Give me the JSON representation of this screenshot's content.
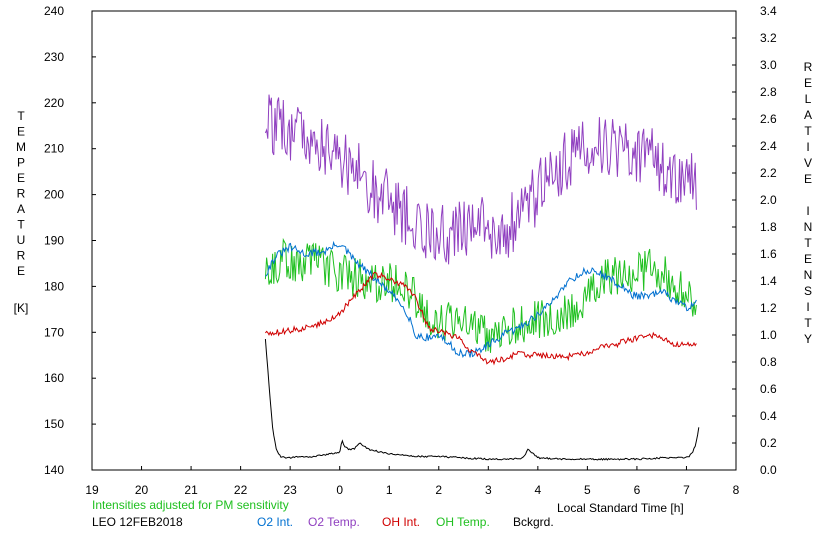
{
  "chart_data": {
    "type": "line",
    "left_axis": {
      "label_letters": [
        "T",
        "E",
        "M",
        "P",
        "E",
        "R",
        "A",
        "T",
        "U",
        "R",
        "E"
      ],
      "unit": "[K]",
      "ylim": [
        140,
        240
      ],
      "ticks": [
        "240",
        "230",
        "220",
        "210",
        "200",
        "190",
        "180",
        "170",
        "160",
        "150",
        "140"
      ]
    },
    "right_axis": {
      "label_word1": [
        "R",
        "E",
        "L",
        "A",
        "T",
        "I",
        "V",
        "E"
      ],
      "label_word2": [
        "I",
        "N",
        "T",
        "E",
        "N",
        "S",
        "I",
        "T",
        "Y"
      ],
      "ylim": [
        0,
        3.4
      ],
      "ticks": [
        "3.4",
        "3.2",
        "3.0",
        "2.8",
        "2.6",
        "2.4",
        "2.2",
        "2.0",
        "1.8",
        "1.6",
        "1.4",
        "1.2",
        "1.0",
        "0.8",
        "0.6",
        "0.4",
        "0.2",
        "0.0"
      ]
    },
    "x_axis": {
      "label": "Local Standard Time [h]",
      "ticks": [
        "19",
        "20",
        "21",
        "22",
        "23",
        "0",
        "1",
        "2",
        "3",
        "4",
        "5",
        "6",
        "7",
        "8"
      ],
      "xlim": [
        19,
        32
      ]
    },
    "note": "Intensities adjusted for PM sensitivity",
    "station": "LEO 12FEB2018",
    "series": [
      {
        "name": "O2 Int.",
        "color": "#0070d0",
        "axis": "right",
        "x": [
          22.5,
          22.7,
          23.0,
          23.3,
          23.7,
          24.0,
          24.3,
          24.7,
          25.0,
          25.3,
          25.45,
          25.5,
          25.8,
          26.0,
          26.3,
          26.5,
          26.8,
          27.0,
          27.3,
          27.6,
          28.0,
          28.3,
          28.6,
          29.0,
          29.3,
          29.6,
          29.9,
          30.2,
          30.5,
          30.8,
          31.0,
          31.2
        ],
        "y": [
          1.45,
          1.58,
          1.65,
          1.6,
          1.62,
          1.68,
          1.55,
          1.42,
          1.32,
          1.2,
          1.1,
          1.0,
          0.98,
          1.0,
          0.9,
          0.85,
          0.88,
          0.92,
          1.0,
          1.05,
          1.15,
          1.25,
          1.4,
          1.48,
          1.45,
          1.38,
          1.3,
          1.28,
          1.32,
          1.25,
          1.2,
          1.25
        ],
        "jitter": 0.03
      },
      {
        "name": "O2 Temp.",
        "color": "#9040c0",
        "axis": "left",
        "x": [
          22.5,
          22.8,
          23.2,
          23.6,
          24.0,
          24.3,
          24.6,
          25.0,
          25.3,
          25.6,
          26.0,
          26.3,
          26.6,
          26.9,
          27.1,
          27.4,
          27.8,
          28.2,
          28.6,
          29.0,
          29.4,
          29.8,
          30.2,
          30.5,
          30.8,
          31.0,
          31.2
        ],
        "y": [
          216,
          214,
          214,
          211,
          208,
          206,
          202,
          199,
          196,
          193,
          191,
          191,
          193,
          194,
          190,
          193,
          197,
          204,
          208,
          210,
          211,
          210,
          209,
          206,
          203,
          202,
          203
        ],
        "jitter": 7
      },
      {
        "name": "OH Int.",
        "color": "#d00000",
        "axis": "right",
        "x": [
          22.5,
          22.8,
          23.1,
          23.4,
          23.7,
          24.0,
          24.2,
          24.4,
          24.7,
          25.0,
          25.3,
          25.5,
          25.8,
          26.1,
          26.4,
          26.6,
          26.8,
          27.0,
          27.3,
          27.6,
          28.0,
          28.3,
          28.6,
          28.9,
          29.2,
          29.5,
          29.8,
          30.1,
          30.4,
          30.7,
          31.0,
          31.2
        ],
        "y": [
          1.02,
          1.02,
          1.04,
          1.06,
          1.1,
          1.16,
          1.25,
          1.33,
          1.45,
          1.42,
          1.36,
          1.3,
          1.05,
          1.02,
          0.98,
          0.9,
          0.85,
          0.8,
          0.82,
          0.86,
          0.85,
          0.84,
          0.84,
          0.86,
          0.9,
          0.92,
          0.96,
          0.98,
          1.0,
          0.94,
          0.92,
          0.94
        ],
        "jitter": 0.022
      },
      {
        "name": "OH Temp.",
        "color": "#20c020",
        "axis": "left",
        "x": [
          22.5,
          22.8,
          23.1,
          23.5,
          23.8,
          24.0,
          24.3,
          24.6,
          25.0,
          25.3,
          25.5,
          25.8,
          26.0,
          26.3,
          26.5,
          26.8,
          27.0,
          27.3,
          27.6,
          28.0,
          28.3,
          28.6,
          29.0,
          29.4,
          29.7,
          30.0,
          30.3,
          30.6,
          30.9,
          31.1,
          31.2
        ],
        "y": [
          182,
          186,
          185,
          185,
          184,
          183,
          182,
          181,
          181,
          180,
          178,
          174,
          173,
          172,
          172,
          171,
          170,
          170,
          172,
          173,
          174,
          175,
          177,
          182,
          183,
          183,
          184,
          182,
          180,
          176,
          173
        ],
        "jitter": 4.5
      },
      {
        "name": "Bckgrd.",
        "color": "#000000",
        "axis": "right",
        "x": [
          22.5,
          22.58,
          22.65,
          22.72,
          22.8,
          22.9,
          23.0,
          23.2,
          23.5,
          23.8,
          24.0,
          24.05,
          24.1,
          24.2,
          24.3,
          24.4,
          24.6,
          25.0,
          25.5,
          26.0,
          26.5,
          27.0,
          27.5,
          27.7,
          27.8,
          28.0,
          28.5,
          29.0,
          29.5,
          30.0,
          30.5,
          30.9,
          31.05,
          31.12,
          31.18,
          31.22,
          31.25
        ],
        "y": [
          0.97,
          0.6,
          0.3,
          0.16,
          0.1,
          0.09,
          0.09,
          0.1,
          0.1,
          0.12,
          0.13,
          0.22,
          0.17,
          0.15,
          0.16,
          0.2,
          0.15,
          0.12,
          0.1,
          0.1,
          0.09,
          0.08,
          0.08,
          0.09,
          0.15,
          0.09,
          0.08,
          0.08,
          0.08,
          0.08,
          0.09,
          0.09,
          0.1,
          0.13,
          0.18,
          0.24,
          0.32
        ],
        "jitter": 0.006
      }
    ]
  }
}
